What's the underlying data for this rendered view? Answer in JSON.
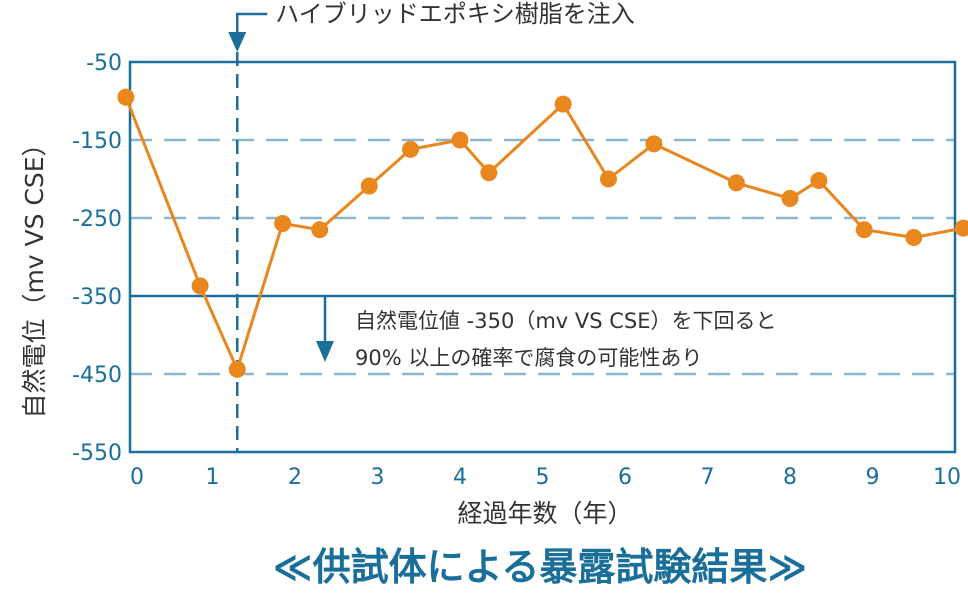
{
  "chart_data": {
    "type": "line",
    "title": "≪供試体による暴露試験結果≫",
    "xlabel": "経過年数（年）",
    "ylabel": "自然電位（mv VS CSE）",
    "xlim": [
      0,
      10
    ],
    "ylim": [
      -550,
      -50
    ],
    "x_ticks": [
      "0",
      "1",
      "2",
      "3",
      "4",
      "5",
      "6",
      "7",
      "8",
      "9",
      "10"
    ],
    "y_ticks": [
      "-50",
      "-150",
      "-250",
      "-350",
      "-450",
      "-550"
    ],
    "series": [
      {
        "x": [
          -0.05,
          0.85,
          1.3,
          1.85,
          2.3,
          2.9,
          3.4,
          4.0,
          4.35,
          5.25,
          5.8,
          6.35,
          7.35,
          8.0,
          8.35,
          8.9,
          9.5,
          10.1
        ],
        "y": [
          -95,
          -337,
          -444,
          -257,
          -265,
          -209,
          -162,
          -150,
          -192,
          -104,
          -200,
          -155,
          -205,
          -225,
          -202,
          -265,
          -275,
          -263
        ]
      }
    ],
    "threshold": {
      "y": -350,
      "text_line1": "自然電位値 -350（mv VS CSE）を下回ると",
      "text_line2": "90% 以上の確率で腐食の可能性あり"
    },
    "event": {
      "x": 1.3,
      "label": "ハイブリッドエポキシ樹脂を注入"
    },
    "grid": "dashed horizontal",
    "colors": {
      "series": "#e8871e",
      "axis": "#1a6f9a",
      "grid": "#8bb8cf"
    }
  }
}
